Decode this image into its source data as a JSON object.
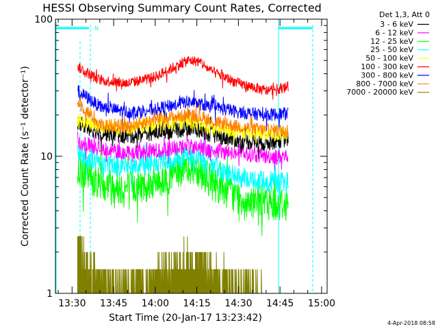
{
  "chart_data": {
    "type": "line",
    "title": "HESSI Observing Summary Count Rates, Corrected",
    "xlabel": "Start Time (20-Jan-17 13:23:42)",
    "ylabel": "Corrected Count Rate (s⁻¹ detector⁻¹)",
    "y_scale": "log",
    "ylim": [
      1,
      100
    ],
    "xlim": [
      "13:24",
      "15:02"
    ],
    "x_ticks": [
      "13:30",
      "13:45",
      "14:00",
      "14:15",
      "14:30",
      "14:45",
      "15:00"
    ],
    "y_ticks": [
      "1",
      "10",
      "100"
    ],
    "legend_title": "Det 1,3, Att 0",
    "legend_position": "top-right",
    "series": [
      {
        "name": "3 - 6 keV",
        "color": "#000000",
        "x": [
          "13:32",
          "13:40",
          "13:50",
          "14:00",
          "14:08",
          "14:12",
          "14:16",
          "14:20",
          "14:30",
          "14:40",
          "14:48"
        ],
        "y": [
          17.5,
          15,
          14,
          15,
          15.5,
          16,
          15.5,
          14.5,
          13,
          12.5,
          13.5
        ]
      },
      {
        "name": "6 - 12 keV",
        "color": "#ff00ff",
        "x": [
          "13:32",
          "13:40",
          "13:50",
          "14:00",
          "14:08",
          "14:12",
          "14:16",
          "14:20",
          "14:30",
          "14:40",
          "14:48"
        ],
        "y": [
          12.5,
          11.5,
          10.5,
          11,
          11.5,
          12,
          11.5,
          11,
          10.5,
          10,
          10
        ]
      },
      {
        "name": "12 - 25 keV",
        "color": "#00ff00",
        "x": [
          "13:32",
          "13:40",
          "13:50",
          "14:00",
          "14:08",
          "14:12",
          "14:16",
          "14:20",
          "14:30",
          "14:40",
          "14:48"
        ],
        "y": [
          8,
          6.5,
          5.8,
          6.5,
          7.5,
          8.5,
          8,
          6.5,
          5,
          4.6,
          4.5
        ]
      },
      {
        "name": "25 - 50 keV",
        "color": "#00ffff",
        "x": [
          "13:32",
          "13:40",
          "13:50",
          "14:00",
          "14:08",
          "14:12",
          "14:16",
          "14:20",
          "14:30",
          "14:40",
          "14:48"
        ],
        "y": [
          10.5,
          9,
          8.5,
          8.8,
          9.5,
          10,
          9.5,
          8.5,
          7,
          6.5,
          6.5
        ]
      },
      {
        "name": "50 - 100 keV",
        "color": "#ffff00",
        "x": [
          "13:32",
          "13:40",
          "13:50",
          "14:00",
          "14:08",
          "14:12",
          "14:16",
          "14:20",
          "14:30",
          "14:40",
          "14:48"
        ],
        "y": [
          18,
          16.5,
          16,
          17,
          17.5,
          18,
          17,
          16,
          15,
          14.5,
          14.5
        ]
      },
      {
        "name": "100 - 300 keV",
        "color": "#ff0000",
        "x": [
          "13:32",
          "13:36",
          "13:40",
          "13:50",
          "14:00",
          "14:08",
          "14:12",
          "14:16",
          "14:20",
          "14:30",
          "14:40",
          "14:48"
        ],
        "y": [
          45,
          40,
          36,
          34,
          38,
          46,
          50,
          49,
          42,
          34,
          30,
          32
        ]
      },
      {
        "name": "300 - 800 keV",
        "color": "#0000ff",
        "x": [
          "13:32",
          "13:40",
          "13:50",
          "14:00",
          "14:08",
          "14:12",
          "14:16",
          "14:20",
          "14:30",
          "14:40",
          "14:48"
        ],
        "y": [
          30,
          23,
          21,
          22,
          24,
          25,
          24,
          23,
          21,
          20,
          20.5
        ]
      },
      {
        "name": "800 - 7000 keV",
        "color": "#ff8000",
        "x": [
          "13:32",
          "13:40",
          "13:50",
          "14:00",
          "14:08",
          "14:12",
          "14:16",
          "14:20",
          "14:30",
          "14:40",
          "14:48"
        ],
        "y": [
          25,
          17,
          16.5,
          18.5,
          19.5,
          20,
          19.5,
          18,
          16.5,
          15.5,
          15.5
        ]
      },
      {
        "name": "7000 - 20000 keV",
        "color": "#808000",
        "x": [
          "13:32",
          "13:36",
          "13:45",
          "13:58",
          "14:06",
          "14:10",
          "14:15",
          "14:20",
          "14:25",
          "14:32",
          "14:40"
        ],
        "y": [
          2.6,
          1.5,
          1.2,
          1.3,
          1.6,
          1.8,
          1.7,
          1.5,
          1.3,
          1.1,
          1.0
        ]
      }
    ],
    "annotations": [
      {
        "text": "N",
        "color": "#00ffff"
      }
    ],
    "timestamp": "4-Apr-2018 08:58"
  }
}
